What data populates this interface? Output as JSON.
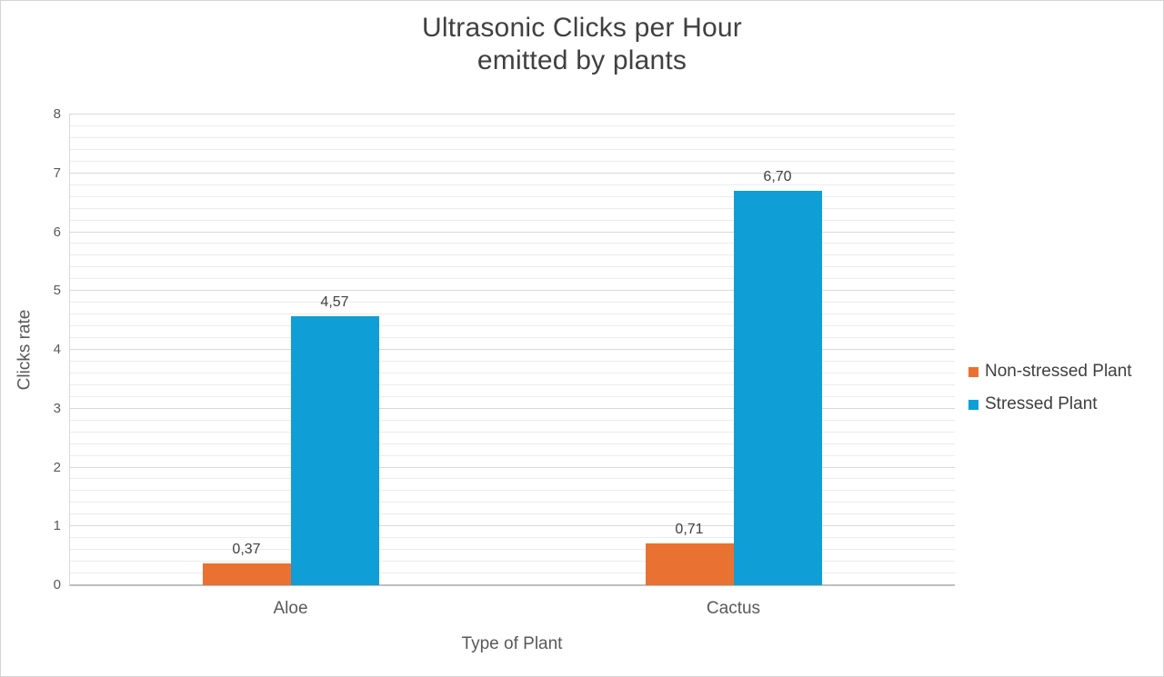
{
  "page": {
    "background": "#ffffff",
    "border_color": "#d5d5d5"
  },
  "chart_data": {
    "type": "bar",
    "title_lines": [
      "Ultrasonic Clicks per Hour",
      "emitted by plants"
    ],
    "title": "Ultrasonic Clicks per Hour emitted by plants",
    "categories": [
      "Aloe",
      "Cactus"
    ],
    "series": [
      {
        "name": "Non-stressed Plant",
        "color": "#E97132",
        "values": [
          0.37,
          0.71
        ],
        "value_labels": [
          "0,37",
          "0,71"
        ]
      },
      {
        "name": "Stressed Plant",
        "color": "#0F9ED5",
        "values": [
          4.57,
          6.7
        ],
        "value_labels": [
          "4,57",
          "6,70"
        ]
      }
    ],
    "xlabel": "Type of Plant",
    "ylabel": "Clicks rate",
    "ylim": [
      0,
      8
    ],
    "y_major_step": 1,
    "y_minor_step": 0.2,
    "y_ticks": [
      "0",
      "1",
      "2",
      "3",
      "4",
      "5",
      "6",
      "7",
      "8"
    ],
    "grid": "major and minor horizontal gridlines",
    "legend_position": "right",
    "colors": {
      "title_text": "#404040",
      "axis_text": "#595959",
      "value_label_text": "#404040",
      "gridline_major": "#d9d9d9",
      "gridline_minor": "#ececec",
      "axis_baseline": "#bfbfbf"
    }
  }
}
